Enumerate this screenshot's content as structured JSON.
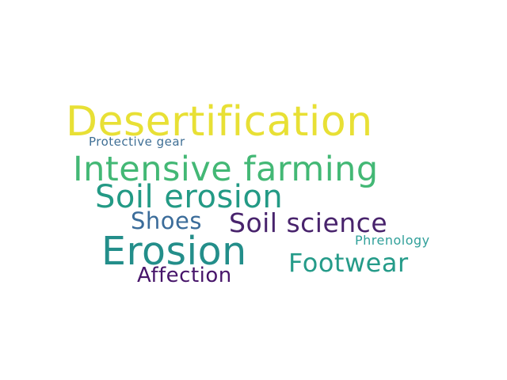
{
  "word_cloud": {
    "words": [
      {
        "id": "w-desertification",
        "text": "Desertification",
        "color": "#e8e035"
      },
      {
        "id": "w-protective",
        "text": "Protective gear",
        "color": "#3f6f95"
      },
      {
        "id": "w-intensive",
        "text": "Intensive farming",
        "color": "#43b875"
      },
      {
        "id": "w-soilerosion",
        "text": "Soil erosion",
        "color": "#239a85"
      },
      {
        "id": "w-shoes",
        "text": "Shoes",
        "color": "#3b6c9a"
      },
      {
        "id": "w-soilscience",
        "text": "Soil science",
        "color": "#48236c"
      },
      {
        "id": "w-phrenology",
        "text": "Phrenology",
        "color": "#31a09a"
      },
      {
        "id": "w-erosion",
        "text": "Erosion",
        "color": "#238e8a"
      },
      {
        "id": "w-footwear",
        "text": "Footwear",
        "color": "#259b89"
      },
      {
        "id": "w-affection",
        "text": "Affection",
        "color": "#47156a"
      }
    ]
  }
}
